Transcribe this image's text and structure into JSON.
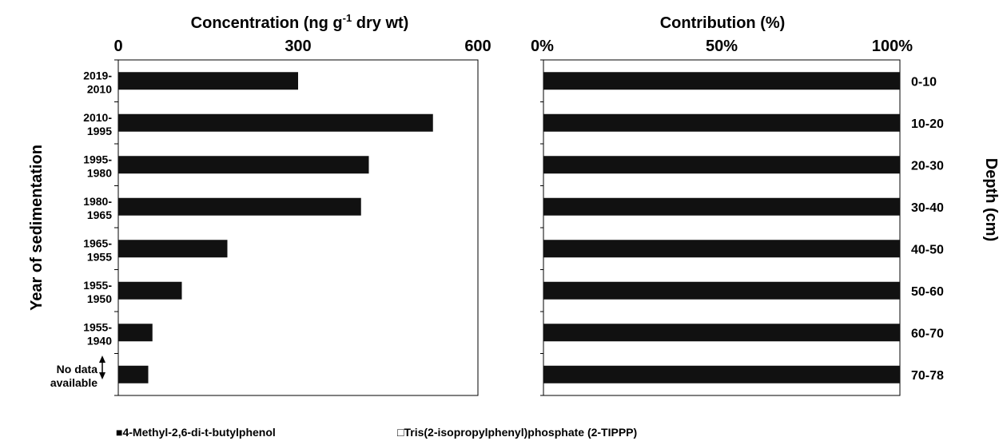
{
  "chart_data": [
    {
      "type": "bar",
      "orientation": "horizontal",
      "title": "Concentration (ng g-1 dry wt)",
      "xlabel_main": "Concentration (ng g",
      "xlabel_sup": "-1",
      "xlabel_tail": " dry wt)",
      "ylabel": "Year of sedimentation",
      "xlim": [
        0,
        600
      ],
      "xticks": [
        "0",
        "300",
        "600"
      ],
      "categories": [
        [
          "2019-",
          "2010"
        ],
        [
          "2010-",
          "1995"
        ],
        [
          "1995-",
          "1980"
        ],
        [
          "1980-",
          "1965"
        ],
        [
          "1965-",
          "1955"
        ],
        [
          "1955-",
          "1950"
        ],
        [
          "1955-",
          "1940"
        ],
        [
          "No data",
          "available"
        ]
      ],
      "series": [
        {
          "name": "4-Methyl-2,6-di-t-butylphenol",
          "color": "#111111",
          "values": [
            300,
            525,
            418,
            405,
            182,
            106,
            57,
            50
          ]
        }
      ],
      "bar_color": "#111111"
    },
    {
      "type": "bar",
      "orientation": "horizontal",
      "stacked": true,
      "title": "Contribution (%)",
      "xlim": [
        0,
        100
      ],
      "xticks": [
        "0%",
        "50%",
        "100%"
      ],
      "ylabel": "Depth (cm)",
      "categories": [
        "0-10",
        "10-20",
        "20-30",
        "30-40",
        "40-50",
        "50-60",
        "60-70",
        "70-78"
      ],
      "series": [
        {
          "name": "4-Methyl-2,6-di-t-butylphenol",
          "color": "#111111",
          "values": [
            100,
            100,
            100,
            100,
            100,
            100,
            100,
            100
          ]
        },
        {
          "name": "Tris(2-isopropylphenyl)phosphate (2-TIPPP)",
          "color": "#ffffff",
          "values": [
            0,
            0,
            0,
            0,
            0,
            0,
            0,
            0
          ]
        }
      ]
    }
  ],
  "legend": {
    "position": "bottom",
    "items": [
      {
        "marker": "■",
        "label": "4-Methyl-2,6-di-t-butylphenol"
      },
      {
        "marker": "□",
        "label": "Tris(2-isopropylphenyl)phosphate (2-TIPPP)"
      }
    ]
  }
}
